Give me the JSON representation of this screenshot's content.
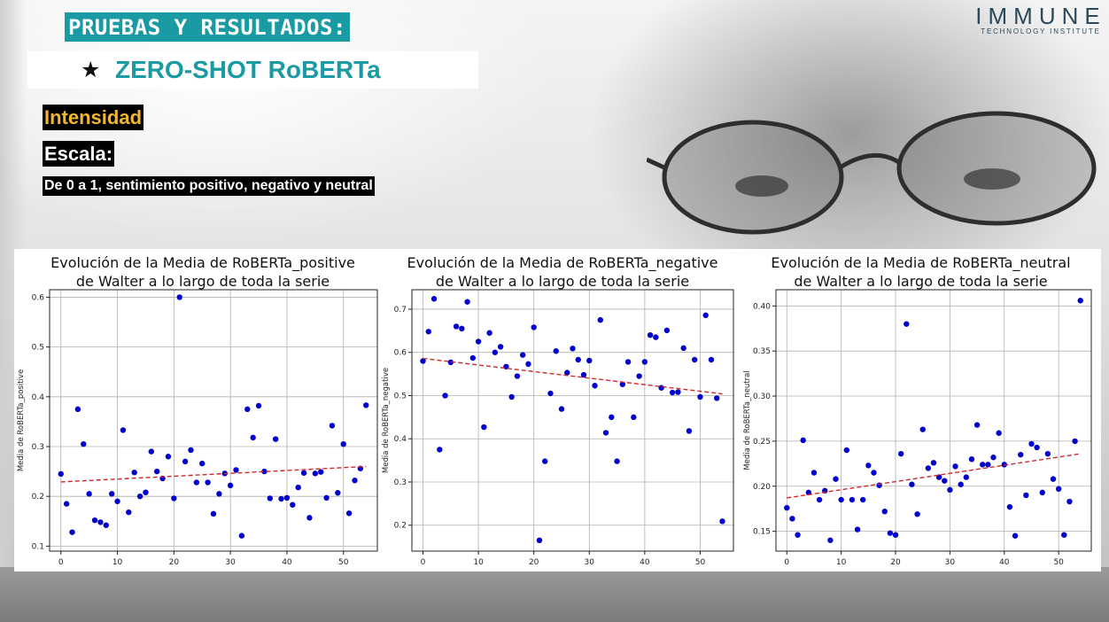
{
  "slide": {
    "section_title": "PRUEBAS Y RESULTADOS:",
    "subtitle_star": "★",
    "subtitle": "ZERO-SHOT RoBERTa",
    "label_intensity": "Intensidad",
    "label_scale": "Escala:",
    "scale_description": "De 0 a 1, sentimiento positivo, negativo y neutral",
    "logo_main": "IMMUNE",
    "logo_sub": "TECHNOLOGY INSTITUTE",
    "colors": {
      "teal": "#1a9aa3",
      "amber": "#f2b632",
      "points": "#0000cd",
      "trend": "#d62728"
    }
  },
  "chart_data": [
    {
      "type": "scatter",
      "title_line1": "Evolución de la Media de RoBERTa_positive",
      "title_line2": "de Walter a lo largo de toda la serie",
      "xlabel": "",
      "ylabel": "Media de RoBERTa_positive",
      "xlim": [
        -2,
        56
      ],
      "ylim": [
        0.09,
        0.615
      ],
      "xticks": [
        0,
        10,
        20,
        30,
        40,
        50
      ],
      "yticks": [
        0.1,
        0.2,
        0.3,
        0.4,
        0.5,
        0.6
      ],
      "ytick_labels": [
        "0.1",
        "0.2",
        "0.3",
        "0.4",
        "0.5",
        "0.6"
      ],
      "grid": true,
      "x": [
        0,
        1,
        2,
        3,
        4,
        5,
        6,
        7,
        8,
        9,
        10,
        11,
        12,
        13,
        14,
        15,
        16,
        17,
        18,
        19,
        20,
        21,
        22,
        23,
        24,
        25,
        26,
        27,
        28,
        29,
        30,
        31,
        32,
        33,
        34,
        35,
        36,
        37,
        38,
        39,
        40,
        41,
        42,
        43,
        44,
        45,
        46,
        47,
        48,
        49,
        50,
        51,
        52,
        53,
        54
      ],
      "y": [
        0.245,
        0.185,
        0.128,
        0.375,
        0.305,
        0.205,
        0.152,
        0.148,
        0.142,
        0.205,
        0.19,
        0.333,
        0.168,
        0.248,
        0.2,
        0.208,
        0.29,
        0.25,
        0.236,
        0.28,
        0.196,
        0.6,
        0.27,
        0.293,
        0.228,
        0.266,
        0.228,
        0.165,
        0.205,
        0.246,
        0.222,
        0.253,
        0.121,
        0.375,
        0.318,
        0.382,
        0.25,
        0.196,
        0.315,
        0.195,
        0.197,
        0.183,
        0.218,
        0.247,
        0.157,
        0.246,
        0.249,
        0.197,
        0.342,
        0.207,
        0.305,
        0.166,
        0.232,
        0.256,
        0.383
      ],
      "trend": {
        "x": [
          0,
          54
        ],
        "y": [
          0.229,
          0.26
        ]
      }
    },
    {
      "type": "scatter",
      "title_line1": "Evolución de la Media de RoBERTa_negative",
      "title_line2": "de Walter a lo largo de toda la serie",
      "xlabel": "",
      "ylabel": "Media de RoBERTa_negative",
      "xlim": [
        -2,
        56
      ],
      "ylim": [
        0.14,
        0.745
      ],
      "xticks": [
        0,
        10,
        20,
        30,
        40,
        50
      ],
      "yticks": [
        0.2,
        0.3,
        0.4,
        0.5,
        0.6,
        0.7
      ],
      "ytick_labels": [
        "0.2",
        "0.3",
        "0.4",
        "0.5",
        "0.6",
        "0.7"
      ],
      "grid": true,
      "x": [
        0,
        1,
        2,
        3,
        4,
        5,
        6,
        7,
        8,
        9,
        10,
        11,
        12,
        13,
        14,
        15,
        16,
        17,
        18,
        19,
        20,
        21,
        22,
        23,
        24,
        25,
        26,
        27,
        28,
        29,
        30,
        31,
        32,
        33,
        34,
        35,
        36,
        37,
        38,
        39,
        40,
        41,
        42,
        43,
        44,
        45,
        46,
        47,
        48,
        49,
        50,
        51,
        52,
        53,
        54
      ],
      "y": [
        0.58,
        0.648,
        0.724,
        0.375,
        0.5,
        0.577,
        0.66,
        0.655,
        0.717,
        0.587,
        0.625,
        0.427,
        0.645,
        0.6,
        0.613,
        0.567,
        0.497,
        0.545,
        0.594,
        0.573,
        0.658,
        0.165,
        0.348,
        0.505,
        0.603,
        0.469,
        0.553,
        0.609,
        0.583,
        0.548,
        0.581,
        0.523,
        0.675,
        0.414,
        0.45,
        0.348,
        0.526,
        0.578,
        0.45,
        0.545,
        0.578,
        0.64,
        0.635,
        0.518,
        0.651,
        0.507,
        0.508,
        0.61,
        0.418,
        0.583,
        0.497,
        0.686,
        0.583,
        0.494,
        0.209
      ],
      "trend": {
        "x": [
          0,
          54
        ],
        "y": [
          0.586,
          0.504
        ]
      }
    },
    {
      "type": "scatter",
      "title_line1": "Evolución de la Media de RoBERTa_neutral",
      "title_line2": "de Walter a lo largo de toda la serie",
      "xlabel": "",
      "ylabel": "Media de RoBERTa_neutral",
      "xlim": [
        -2,
        56
      ],
      "ylim": [
        0.128,
        0.418
      ],
      "xticks": [
        0,
        10,
        20,
        30,
        40,
        50
      ],
      "yticks": [
        0.15,
        0.2,
        0.25,
        0.3,
        0.35,
        0.4
      ],
      "ytick_labels": [
        "0.15",
        "0.20",
        "0.25",
        "0.30",
        "0.35",
        "0.40"
      ],
      "grid": true,
      "x": [
        0,
        1,
        2,
        3,
        4,
        5,
        6,
        7,
        8,
        9,
        10,
        11,
        12,
        13,
        14,
        15,
        16,
        17,
        18,
        19,
        20,
        21,
        22,
        23,
        24,
        25,
        26,
        27,
        28,
        29,
        30,
        31,
        32,
        33,
        34,
        35,
        36,
        37,
        38,
        39,
        40,
        41,
        42,
        43,
        44,
        45,
        46,
        47,
        48,
        49,
        50,
        51,
        52,
        53,
        54
      ],
      "y": [
        0.176,
        0.164,
        0.146,
        0.251,
        0.193,
        0.215,
        0.185,
        0.195,
        0.14,
        0.208,
        0.185,
        0.24,
        0.185,
        0.152,
        0.185,
        0.223,
        0.215,
        0.201,
        0.172,
        0.148,
        0.146,
        0.236,
        0.38,
        0.202,
        0.169,
        0.263,
        0.22,
        0.226,
        0.21,
        0.206,
        0.196,
        0.222,
        0.202,
        0.21,
        0.23,
        0.268,
        0.224,
        0.224,
        0.232,
        0.259,
        0.224,
        0.177,
        0.145,
        0.235,
        0.19,
        0.247,
        0.243,
        0.193,
        0.236,
        0.208,
        0.197,
        0.146,
        0.183,
        0.25,
        0.406
      ],
      "trend": {
        "x": [
          0,
          54
        ],
        "y": [
          0.187,
          0.236
        ]
      }
    }
  ]
}
